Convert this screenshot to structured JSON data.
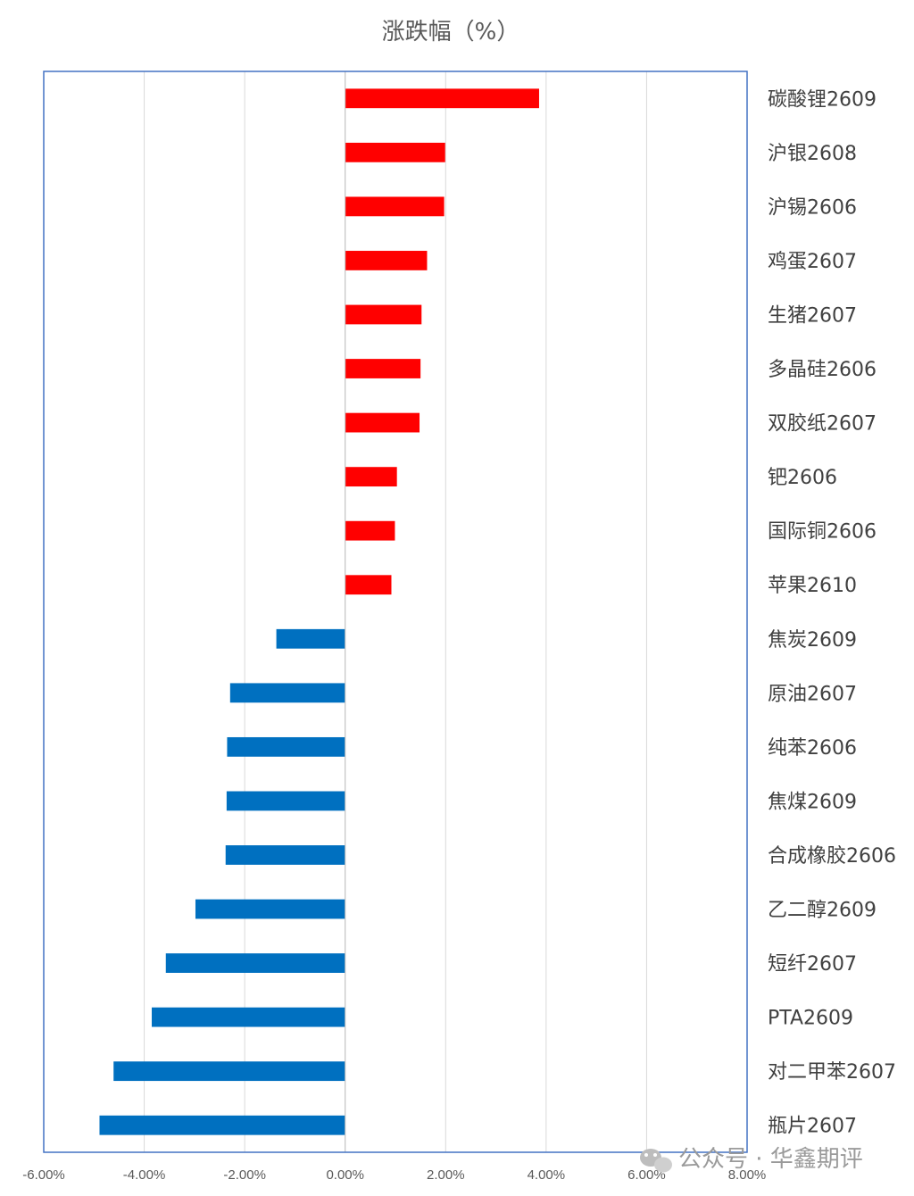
{
  "chart_data": {
    "type": "bar",
    "orientation": "horizontal",
    "title": "涨跌幅（%）",
    "xlabel": "",
    "ylabel": "",
    "xlim": [
      -6,
      8
    ],
    "x_ticks": [
      "-6.00%",
      "-4.00%",
      "-2.00%",
      "0.00%",
      "2.00%",
      "4.00%",
      "6.00%",
      "8.00%"
    ],
    "grid": true,
    "legend": "none",
    "categories": [
      "碳酸锂2609",
      "沪银2608",
      "沪锡2606",
      "鸡蛋2607",
      "生猪2607",
      "多晶硅2606",
      "双胶纸2607",
      "钯2606",
      "国际铜2606",
      "苹果2610",
      "焦炭2609",
      "原油2607",
      "纯苯2606",
      "焦煤2609",
      "合成橡胶2606",
      "乙二醇2609",
      "短纤2607",
      "PTA2609",
      "对二甲苯2607",
      "瓶片2607"
    ],
    "values": [
      3.86,
      1.99,
      1.97,
      1.63,
      1.52,
      1.5,
      1.48,
      1.03,
      0.99,
      0.92,
      -1.37,
      -2.29,
      -2.35,
      -2.36,
      -2.38,
      -2.98,
      -3.57,
      -3.85,
      -4.61,
      -4.89
    ],
    "colors": {
      "positive": "#ff0000",
      "negative": "#0070c0",
      "frame": "#4472c4",
      "grid": "#d9d9d9"
    }
  },
  "watermark": {
    "icon": "wechat-icon",
    "text": "公众号 · 华鑫期评"
  }
}
